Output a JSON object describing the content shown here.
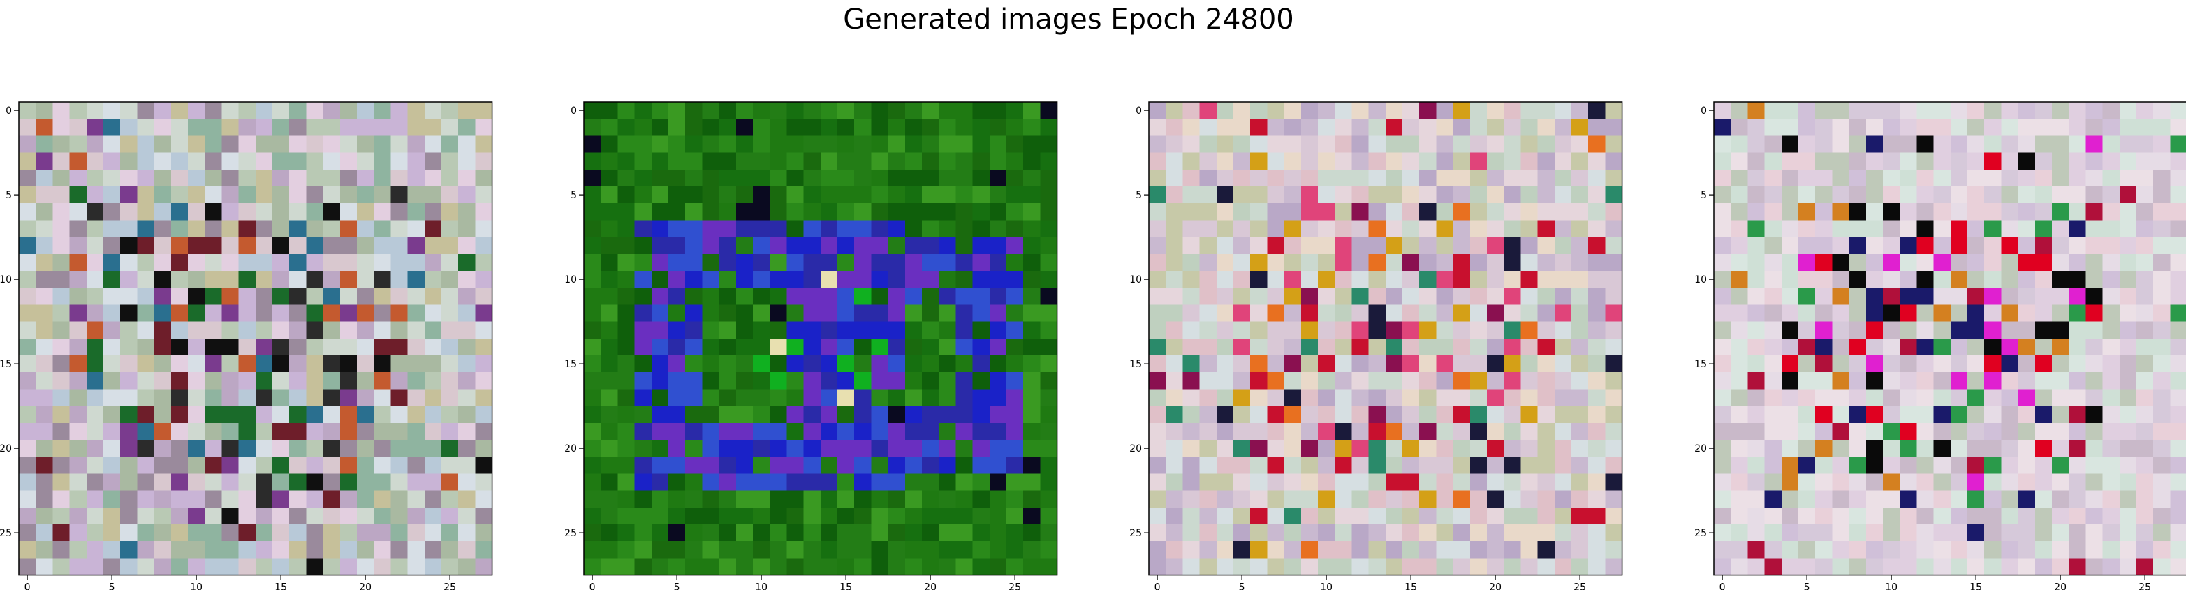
{
  "figure": {
    "title": "Generated images Epoch 24800"
  },
  "chart_data": [
    {
      "type": "heatmap",
      "content": "generated RGB image, 28x28 pixels, pastel noise with darker central blotches",
      "x_ticks": [
        0,
        5,
        10,
        15,
        20,
        25
      ],
      "y_ticks": [
        0,
        5,
        10,
        15,
        20,
        25
      ],
      "xlim": [
        -0.5,
        27.5
      ],
      "ylim": [
        27.5,
        -0.5
      ],
      "palette": [
        "#c9b4d6",
        "#d9c8cf",
        "#b9c9b4",
        "#e3cfe0",
        "#a9b9a1",
        "#cfd9d0",
        "#bca7c4",
        "#8fb4a0",
        "#9a8a9c",
        "#d7dfe6",
        "#b8c9d8",
        "#c6c09a"
      ],
      "accents": [
        "#2b2b2b",
        "#6e1e2a",
        "#1a6b2a",
        "#7a3b8e",
        "#c45a2f",
        "#2a6f8f",
        "#101010"
      ]
    },
    {
      "type": "heatmap",
      "content": "generated RGB image, 28x28 pixels, green background with blue ring-like blotches",
      "x_ticks": [
        0,
        5,
        10,
        15,
        20,
        25
      ],
      "y_ticks": [
        0,
        5,
        10,
        15,
        20,
        25
      ],
      "xlim": [
        -0.5,
        27.5
      ],
      "ylim": [
        27.5,
        -0.5
      ],
      "palette": [
        "#1f7a12",
        "#167010",
        "#2a8a1a",
        "#0f5f0b",
        "#237d16",
        "#3a9a22",
        "#1a6a0e"
      ],
      "accents": [
        "#1a22c8",
        "#2a2aa8",
        "#3050d0",
        "#6a2fc0",
        "#10b020",
        "#e8e0b0",
        "#0a0a20"
      ]
    },
    {
      "type": "heatmap",
      "content": "generated RGB image, 28x28 pixels, pastel noise with red and magenta central blotches",
      "x_ticks": [
        0,
        5,
        10,
        15,
        20,
        25
      ],
      "y_ticks": [
        0,
        5,
        10,
        15,
        20,
        25
      ],
      "xlim": [
        -0.5,
        27.5
      ],
      "ylim": [
        27.5,
        -0.5
      ],
      "palette": [
        "#d9c8d6",
        "#c9b9d0",
        "#e6d6dc",
        "#bfd0bf",
        "#d6dfe2",
        "#e0c0c8",
        "#c7c9a8",
        "#b9a8c7",
        "#e9d9c9",
        "#cbd9cf"
      ],
      "accents": [
        "#c8102e",
        "#e0447a",
        "#d4a017",
        "#1a1a3a",
        "#8a1050",
        "#2a8a6a",
        "#e87020"
      ]
    },
    {
      "type": "heatmap",
      "content": "generated RGB image, 28x28 pixels, pastel noise with red, black and magenta central blotches",
      "x_ticks": [
        0,
        5,
        10,
        15,
        20,
        25
      ],
      "y_ticks": [
        0,
        5,
        10,
        15,
        20,
        25
      ],
      "xlim": [
        -0.5,
        27.5
      ],
      "ylim": [
        27.5,
        -0.5
      ],
      "palette": [
        "#e0cfe0",
        "#d6c9da",
        "#cfe0d6",
        "#e6dce6",
        "#c9b9c9",
        "#d9e6e0",
        "#e9d0d9",
        "#bfc9b9",
        "#d0c0d9",
        "#ece0e6"
      ],
      "accents": [
        "#e00020",
        "#0a0a0a",
        "#e020d0",
        "#2a9a4a",
        "#d48020",
        "#1a1a6a",
        "#b0103a"
      ]
    }
  ]
}
